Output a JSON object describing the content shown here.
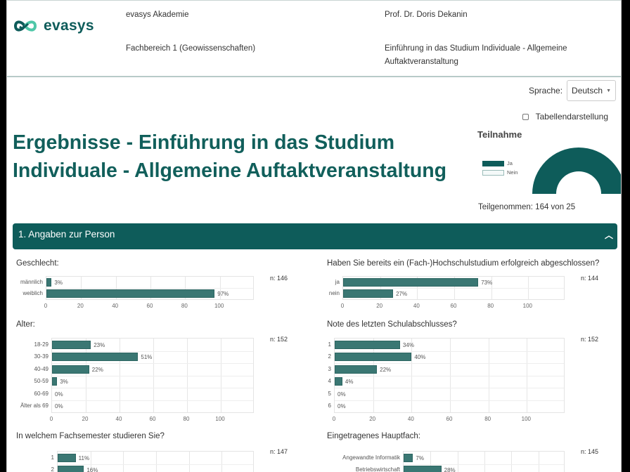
{
  "header": {
    "logo_text": "evasys",
    "institution": "evasys Akademie",
    "department": "Fachbereich 1 (Geowissenschaften)",
    "lecturer": "Prof. Dr. Doris Dekanin",
    "course_line1": "Einführung in das Studium Individuale - Allgemeine",
    "course_line2": "Auftaktveranstaltung"
  },
  "language": {
    "label": "Sprache:",
    "selected": "Deutsch"
  },
  "table_toggle": {
    "label": "Tabellendarstellung",
    "checked": false
  },
  "page_title_line1": "Ergebnisse - Einführung in das Studium",
  "page_title_line2": "Individuale - Allgemeine Auftaktveranstaltung",
  "participation": {
    "title": "Teilnahme",
    "legend": [
      "Ja",
      "Nein"
    ],
    "footer": "Teilgenommen: 164 von 25",
    "colors": {
      "ja": "#0e5c5a",
      "nein": "#f4f9f9"
    }
  },
  "section": {
    "title": "1. Angaben zur Person",
    "expanded": true
  },
  "colors": {
    "brand": "#0e5c5a",
    "bar": "#3a7773"
  },
  "chart_data": [
    {
      "type": "bar",
      "orientation": "horizontal",
      "title": "Geschlecht:",
      "n": "n: 146",
      "categories": [
        "männlich",
        "weiblich"
      ],
      "values": [
        3,
        97
      ],
      "labels": [
        "3%",
        "97%"
      ],
      "xticks": [
        "0",
        "20",
        "40",
        "60",
        "80",
        "100"
      ],
      "xlim": [
        0,
        120
      ]
    },
    {
      "type": "bar",
      "orientation": "horizontal",
      "title": "Haben Sie bereits ein (Fach-)Hochschulstudium erfolgreich abgeschlossen?",
      "n": "n: 144",
      "categories": [
        "ja",
        "nein"
      ],
      "values": [
        73,
        27
      ],
      "labels": [
        "73%",
        "27%"
      ],
      "xticks": [
        "0",
        "20",
        "40",
        "60",
        "80",
        "100"
      ],
      "xlim": [
        0,
        120
      ]
    },
    {
      "type": "bar",
      "orientation": "horizontal",
      "title": "Alter:",
      "n": "n: 152",
      "categories": [
        "18-29",
        "30-39",
        "40-49",
        "50-59",
        "60-69",
        "Älter als 69"
      ],
      "values": [
        23,
        51,
        22,
        3,
        0,
        0
      ],
      "labels": [
        "23%",
        "51%",
        "22%",
        "3%",
        "0%",
        "0%"
      ],
      "xticks": [
        "0",
        "20",
        "40",
        "60",
        "80",
        "100"
      ],
      "xlim": [
        0,
        120
      ]
    },
    {
      "type": "bar",
      "orientation": "horizontal",
      "title": "Note des letzten Schulabschlusses?",
      "n": "n: 152",
      "categories": [
        "1",
        "2",
        "3",
        "4",
        "5",
        "6"
      ],
      "values": [
        34,
        40,
        22,
        4,
        0,
        0
      ],
      "labels": [
        "34%",
        "40%",
        "22%",
        "4%",
        "0%",
        "0%"
      ],
      "xticks": [
        "0",
        "20",
        "40",
        "60",
        "80",
        "100"
      ],
      "xlim": [
        0,
        120
      ]
    },
    {
      "type": "bar",
      "orientation": "horizontal",
      "title": "In welchem Fachsemester studieren Sie?",
      "n": "n: 147",
      "categories": [
        "1",
        "2"
      ],
      "values": [
        11,
        16
      ],
      "labels": [
        "11%",
        "16%"
      ],
      "xlim": [
        0,
        120
      ]
    },
    {
      "type": "bar",
      "orientation": "horizontal",
      "title": "Eingetragenes Hauptfach:",
      "n": "n: 145",
      "categories": [
        "Angewandte Informatik",
        "Betriebswirtschaft"
      ],
      "values": [
        7,
        28
      ],
      "labels": [
        "7%",
        "28%"
      ],
      "xlim": [
        0,
        120
      ]
    }
  ]
}
